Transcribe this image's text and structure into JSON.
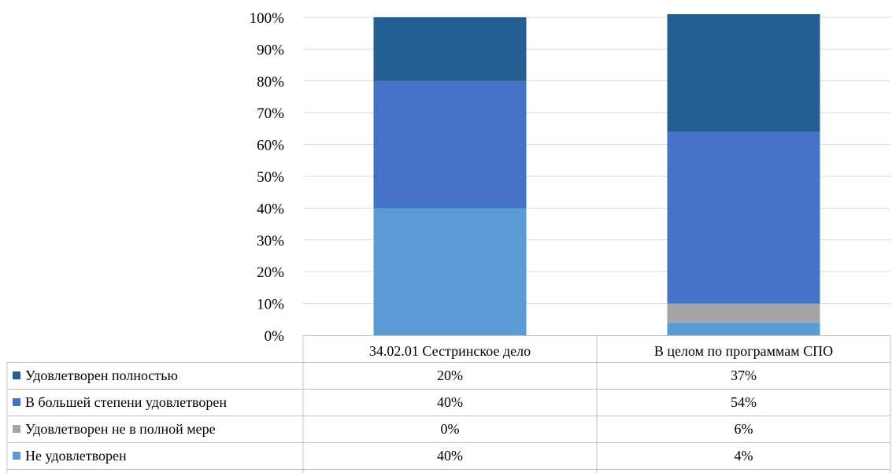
{
  "chart_data": {
    "type": "bar",
    "stacked": true,
    "percent_stacked": true,
    "categories": [
      "34.02.01 Сестринское дело",
      "В целом по программам СПО"
    ],
    "series": [
      {
        "name": "Не удовлетворен",
        "values": [
          40,
          4
        ],
        "labels": [
          "40%",
          "4%"
        ],
        "color": "#5b9bd5"
      },
      {
        "name": "Удовлетворен не в полной мере",
        "values": [
          0,
          6
        ],
        "labels": [
          "0%",
          "6%"
        ],
        "color": "#a5a5a5"
      },
      {
        "name": "В большей степени удовлетворен",
        "values": [
          40,
          54
        ],
        "labels": [
          "40%",
          "54%"
        ],
        "color": "#4472c4"
      },
      {
        "name": "Удовлетворен полностью",
        "values": [
          20,
          37
        ],
        "labels": [
          "20%",
          "37%"
        ],
        "color": "#255e91"
      }
    ],
    "table_order": [
      "Удовлетворен полностью",
      "В большей степени удовлетворен",
      "Удовлетворен не в полной мере",
      "Не удовлетворен"
    ],
    "y_ticks": [
      "0%",
      "10%",
      "20%",
      "30%",
      "40%",
      "50%",
      "60%",
      "70%",
      "80%",
      "90%",
      "100%"
    ],
    "ylim": [
      0,
      100
    ],
    "grid": true,
    "legend": "data-table"
  }
}
